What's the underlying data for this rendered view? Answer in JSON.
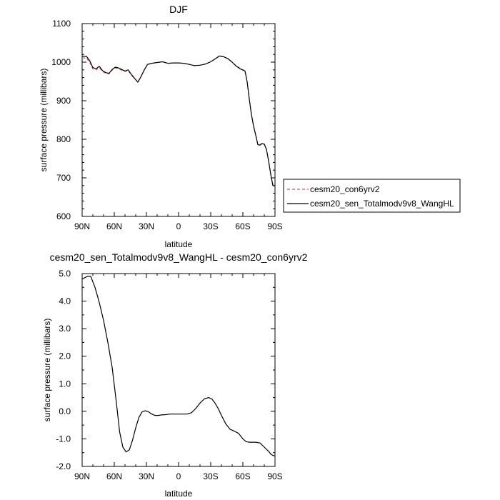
{
  "chart_data": [
    {
      "type": "line",
      "title": "DJF",
      "xlabel": "latitude",
      "ylabel": "surface pressure (millibars)",
      "xlim": [
        90,
        -90
      ],
      "ylim": [
        600,
        1100
      ],
      "xticks": [
        90,
        60,
        30,
        0,
        -30,
        -60,
        -90
      ],
      "xtick_labels": [
        "90N",
        "60N",
        "30N",
        "0",
        "30S",
        "60S",
        "90S"
      ],
      "yticks": [
        600,
        700,
        800,
        900,
        1000,
        1100
      ],
      "ytick_labels": [
        "600",
        "700",
        "800",
        "900",
        "1000",
        "1100"
      ],
      "grid": false,
      "legend": "right-outside",
      "series": [
        {
          "name": "cesm20_con6yrv2",
          "color": "#e05050",
          "style": "dashed",
          "x": [
            90,
            86,
            83,
            80,
            77,
            74,
            71,
            68,
            65,
            62,
            59,
            56,
            53,
            50,
            47,
            44,
            41,
            38,
            35,
            32,
            29,
            25,
            20,
            15,
            10,
            5,
            0,
            -5,
            -10,
            -15,
            -20,
            -25,
            -30,
            -35,
            -38,
            -42,
            -46,
            -50,
            -54,
            -58,
            -62,
            -64,
            -66,
            -68,
            -70,
            -72,
            -74,
            -76,
            -78,
            -80,
            -82,
            -84,
            -86,
            -88,
            -90
          ],
          "y": [
            1011,
            1011,
            1000,
            982,
            980,
            986,
            976,
            971,
            969,
            979,
            985,
            983,
            979,
            976,
            978,
            966,
            957,
            949,
            963,
            980,
            994,
            997,
            999,
            1001,
            997,
            998,
            998,
            997,
            994,
            991,
            992,
            995,
            1001,
            1010,
            1015,
            1014,
            1009,
            1000,
            990,
            983,
            978,
            950,
            905,
            865,
            835,
            812,
            787,
            786,
            790,
            788,
            775,
            745,
            710,
            682,
            680
          ]
        },
        {
          "name": "cesm20_sen_Totalmodv9v8_WangHL",
          "color": "#000000",
          "style": "solid",
          "x": [
            90,
            86,
            83,
            80,
            77,
            74,
            71,
            68,
            65,
            62,
            59,
            56,
            53,
            50,
            47,
            44,
            41,
            38,
            35,
            32,
            29,
            25,
            20,
            15,
            10,
            5,
            0,
            -5,
            -10,
            -15,
            -20,
            -25,
            -30,
            -35,
            -38,
            -42,
            -46,
            -50,
            -54,
            -58,
            -62,
            -64,
            -66,
            -68,
            -70,
            -72,
            -74,
            -76,
            -78,
            -80,
            -82,
            -84,
            -86,
            -88,
            -90
          ],
          "y": [
            1015,
            1015,
            1004,
            986,
            983,
            989,
            978,
            973,
            971,
            981,
            987,
            985,
            981,
            977,
            980,
            968,
            958,
            948,
            963,
            980,
            994,
            997,
            999,
            1001,
            997,
            998,
            998,
            997,
            994,
            991,
            992,
            995,
            1001,
            1010,
            1016,
            1014,
            1009,
            1000,
            989,
            982,
            977,
            949,
            904,
            864,
            834,
            811,
            786,
            785,
            789,
            787,
            774,
            744,
            709,
            680,
            679
          ]
        }
      ]
    },
    {
      "type": "line",
      "title": "cesm20_sen_Totalmodv9v8_WangHL - cesm20_con6yrv2",
      "xlabel": "latitude",
      "ylabel": "surface pressure (millibars)",
      "xlim": [
        90,
        -90
      ],
      "ylim": [
        -2.0,
        5.0
      ],
      "xticks": [
        90,
        60,
        30,
        0,
        -30,
        -60,
        -90
      ],
      "xtick_labels": [
        "90N",
        "60N",
        "30N",
        "0",
        "30S",
        "60S",
        "90S"
      ],
      "yticks": [
        -2.0,
        -1.0,
        0.0,
        1.0,
        2.0,
        3.0,
        4.0,
        5.0
      ],
      "ytick_labels": [
        "-2.0",
        "-1.0",
        "0.0",
        "1.0",
        "2.0",
        "3.0",
        "4.0",
        "5.0"
      ],
      "grid": false,
      "series": [
        {
          "color": "#000000",
          "style": "solid",
          "x": [
            90,
            85,
            82,
            78,
            74,
            70,
            66,
            62,
            58,
            55,
            52,
            49,
            46,
            43,
            40,
            37,
            34,
            31,
            28,
            25,
            22,
            19,
            16,
            12,
            8,
            4,
            0,
            -4,
            -8,
            -12,
            -16,
            -20,
            -24,
            -28,
            -31,
            -34,
            -37,
            -40,
            -44,
            -48,
            -52,
            -56,
            -60,
            -63,
            -66,
            -69,
            -72,
            -76,
            -80,
            -84,
            -86,
            -88,
            -90
          ],
          "y": [
            4.8,
            4.9,
            4.9,
            4.5,
            3.95,
            3.3,
            2.5,
            1.6,
            0.3,
            -0.75,
            -1.3,
            -1.47,
            -1.4,
            -1.05,
            -0.6,
            -0.22,
            -0.02,
            0.02,
            -0.02,
            -0.1,
            -0.15,
            -0.15,
            -0.13,
            -0.12,
            -0.1,
            -0.1,
            -0.1,
            -0.1,
            -0.1,
            -0.05,
            0.1,
            0.3,
            0.45,
            0.5,
            0.45,
            0.3,
            0.1,
            -0.15,
            -0.45,
            -0.65,
            -0.72,
            -0.8,
            -1.0,
            -1.1,
            -1.12,
            -1.12,
            -1.12,
            -1.15,
            -1.3,
            -1.45,
            -1.55,
            -1.6,
            -1.62
          ]
        }
      ]
    }
  ]
}
